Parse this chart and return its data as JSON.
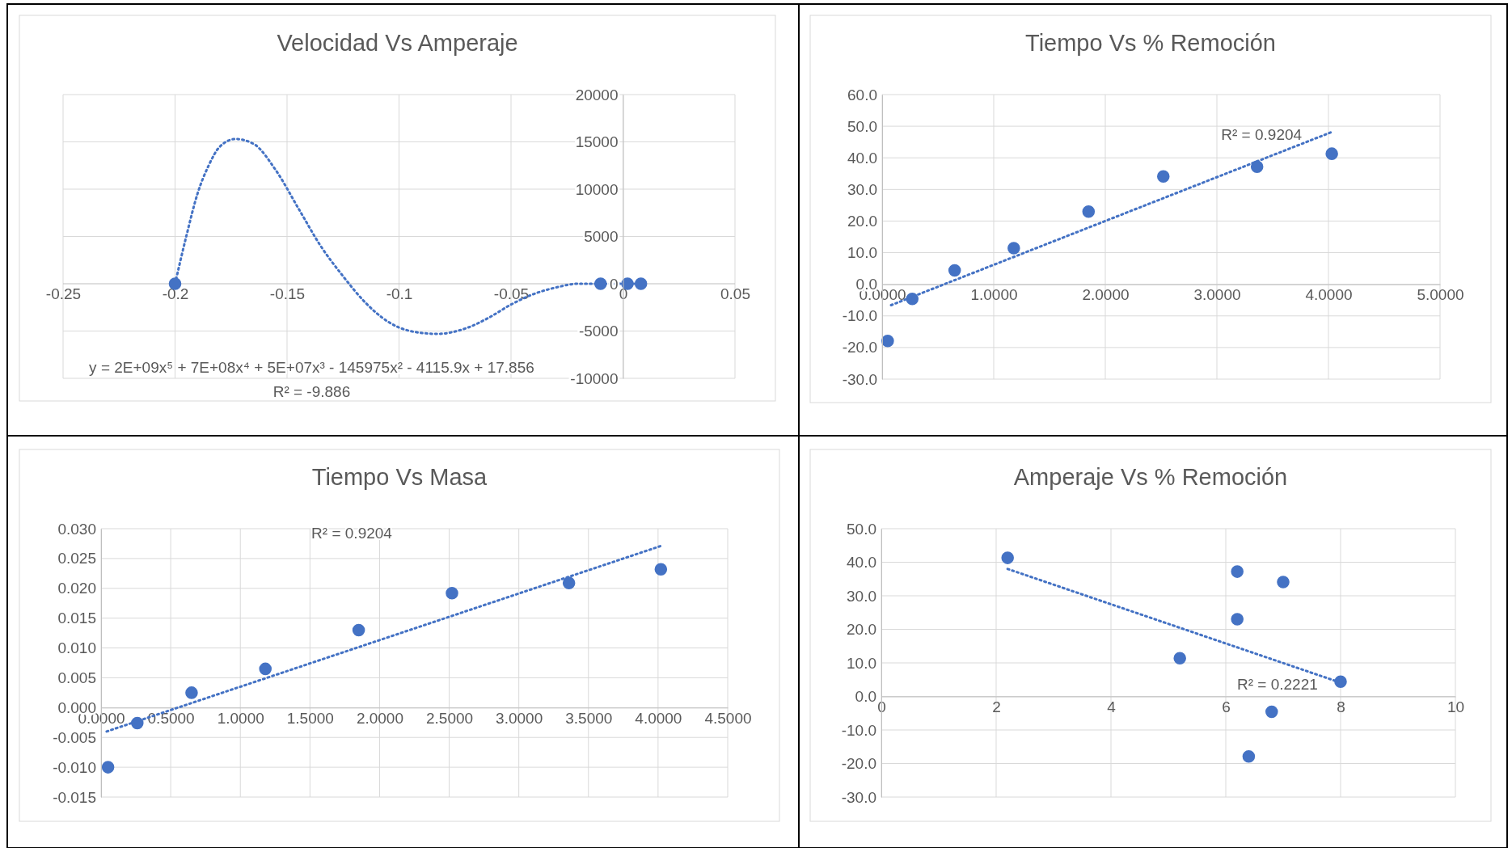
{
  "chart_data": [
    {
      "type": "scatter",
      "title": "Velocidad Vs Amperaje",
      "xlim": [
        -0.25,
        0.05
      ],
      "xticks": [
        -0.25,
        -0.2,
        -0.15,
        -0.1,
        -0.05,
        0,
        0.05
      ],
      "ylim": [
        -10000,
        20000
      ],
      "yticks": [
        -10000,
        -5000,
        0,
        5000,
        10000,
        15000,
        20000
      ],
      "grid": true,
      "marker": "circle",
      "series": [
        {
          "type": "line",
          "line_style": "dotted",
          "color": "#4472c4",
          "x": [
            -0.2,
            -0.195,
            -0.19,
            -0.185,
            -0.18,
            -0.173,
            -0.165,
            -0.155,
            -0.145,
            -0.135,
            -0.125,
            -0.115,
            -0.105,
            -0.095,
            -0.083,
            -0.07,
            -0.06,
            -0.05,
            -0.04,
            -0.03,
            -0.02,
            -0.01,
            0,
            0.005
          ],
          "values": [
            0,
            5000,
            9500,
            12500,
            14500,
            15300,
            14800,
            12000,
            8000,
            4000,
            800,
            -2000,
            -4000,
            -5000,
            -5300,
            -4700,
            -3600,
            -2200,
            -1100,
            -400,
            0,
            0,
            0,
            0
          ],
          "marker": "none"
        },
        {
          "type": "scatter",
          "color": "#4472c4",
          "x": [
            -0.2,
            -0.01,
            0.002,
            0.008
          ],
          "values": [
            0,
            0,
            0,
            0
          ]
        }
      ],
      "annotations": [
        "y = 2E+09x⁵ + 7E+08x⁴ + 5E+07x³ - 145975x² - 4115.9x + 17.856",
        "R² = -9.886"
      ]
    },
    {
      "type": "scatter",
      "title": "Tiempo Vs % Remoción",
      "xlim": [
        0,
        5
      ],
      "xticks": [
        {
          "value": 0,
          "label": "0.0000"
        },
        {
          "value": 1,
          "label": "1.0000"
        },
        {
          "value": 2,
          "label": "2.0000"
        },
        {
          "value": 3,
          "label": "3.0000"
        },
        {
          "value": 4,
          "label": "4.0000"
        },
        {
          "value": 5,
          "label": "5.0000"
        }
      ],
      "ylim": [
        -30,
        60
      ],
      "yticks": [
        {
          "value": -30,
          "label": "-30.0"
        },
        {
          "value": -20,
          "label": "-20.0"
        },
        {
          "value": -10,
          "label": "-10.0"
        },
        {
          "value": 0,
          "label": "0.0"
        },
        {
          "value": 10,
          "label": "10.0"
        },
        {
          "value": 20,
          "label": "20.0"
        },
        {
          "value": 30,
          "label": "30.0"
        },
        {
          "value": 40,
          "label": "40.0"
        },
        {
          "value": 50,
          "label": "50.0"
        },
        {
          "value": 60,
          "label": "60.0"
        }
      ],
      "grid": true,
      "marker": "circle",
      "series": [
        {
          "type": "scatter",
          "color": "#4472c4",
          "x": [
            0.05,
            0.27,
            0.65,
            1.18,
            1.85,
            2.52,
            3.36,
            4.03
          ],
          "values": [
            -17.9,
            -4.6,
            4.4,
            11.4,
            23.0,
            34.1,
            37.2,
            41.3
          ]
        },
        {
          "type": "line",
          "line_style": "dotted",
          "color": "#4472c4",
          "x": [
            0.08,
            4.04
          ],
          "values": [
            -6.6,
            48.3
          ],
          "marker": "none"
        }
      ],
      "annotations": [
        "R² = 0.9204"
      ]
    },
    {
      "type": "scatter",
      "title": "Tiempo Vs Masa",
      "xlim": [
        0,
        4.5
      ],
      "xticks": [
        {
          "value": 0,
          "label": "0.0000"
        },
        {
          "value": 0.5,
          "label": "0.5000"
        },
        {
          "value": 1,
          "label": "1.0000"
        },
        {
          "value": 1.5,
          "label": "1.5000"
        },
        {
          "value": 2,
          "label": "2.0000"
        },
        {
          "value": 2.5,
          "label": "2.5000"
        },
        {
          "value": 3,
          "label": "3.0000"
        },
        {
          "value": 3.5,
          "label": "3.5000"
        },
        {
          "value": 4,
          "label": "4.0000"
        },
        {
          "value": 4.5,
          "label": "4.5000"
        }
      ],
      "ylim": [
        -0.015,
        0.03
      ],
      "yticks": [
        {
          "value": -0.015,
          "label": "-0.015"
        },
        {
          "value": -0.01,
          "label": "-0.010"
        },
        {
          "value": -0.005,
          "label": "-0.005"
        },
        {
          "value": 0,
          "label": "0.000"
        },
        {
          "value": 0.005,
          "label": "0.005"
        },
        {
          "value": 0.01,
          "label": "0.010"
        },
        {
          "value": 0.015,
          "label": "0.015"
        },
        {
          "value": 0.02,
          "label": "0.020"
        },
        {
          "value": 0.025,
          "label": "0.025"
        },
        {
          "value": 0.03,
          "label": "0.030"
        }
      ],
      "grid": true,
      "marker": "circle",
      "series": [
        {
          "type": "scatter",
          "color": "#4472c4",
          "x": [
            0.05,
            0.26,
            0.65,
            1.18,
            1.85,
            2.52,
            3.36,
            4.02
          ],
          "values": [
            -0.01,
            -0.0026,
            0.0025,
            0.0065,
            0.013,
            0.0192,
            0.0209,
            0.0232
          ]
        },
        {
          "type": "line",
          "line_style": "dotted",
          "color": "#4472c4",
          "x": [
            0.04,
            4.02
          ],
          "values": [
            -0.004,
            0.0271
          ],
          "marker": "none"
        }
      ],
      "annotations": [
        "R² = 0.9204"
      ]
    },
    {
      "type": "scatter",
      "title": "Amperaje Vs % Remoción",
      "xlim": [
        0,
        10
      ],
      "xticks": [
        0,
        2,
        4,
        6,
        8,
        10
      ],
      "ylim": [
        -30,
        50
      ],
      "yticks": [
        {
          "value": -30,
          "label": "-30.0"
        },
        {
          "value": -20,
          "label": "-20.0"
        },
        {
          "value": -10,
          "label": "-10.0"
        },
        {
          "value": 0,
          "label": "0.0"
        },
        {
          "value": 10,
          "label": "10.0"
        },
        {
          "value": 20,
          "label": "20.0"
        },
        {
          "value": 30,
          "label": "30.0"
        },
        {
          "value": 40,
          "label": "40.0"
        },
        {
          "value": 50,
          "label": "50.0"
        }
      ],
      "grid": true,
      "marker": "circle",
      "series": [
        {
          "type": "scatter",
          "color": "#4472c4",
          "x": [
            2.2,
            6.2,
            7.0,
            6.2,
            5.2,
            8.0,
            6.8,
            6.4
          ],
          "values": [
            41.3,
            37.2,
            34.1,
            23.0,
            11.4,
            4.4,
            -4.6,
            -17.9
          ]
        },
        {
          "type": "line",
          "line_style": "dotted",
          "color": "#4472c4",
          "x": [
            2.2,
            8.0
          ],
          "values": [
            38.0,
            4.1
          ],
          "marker": "none"
        }
      ],
      "annotations": [
        "R² = 0.2221"
      ]
    }
  ]
}
